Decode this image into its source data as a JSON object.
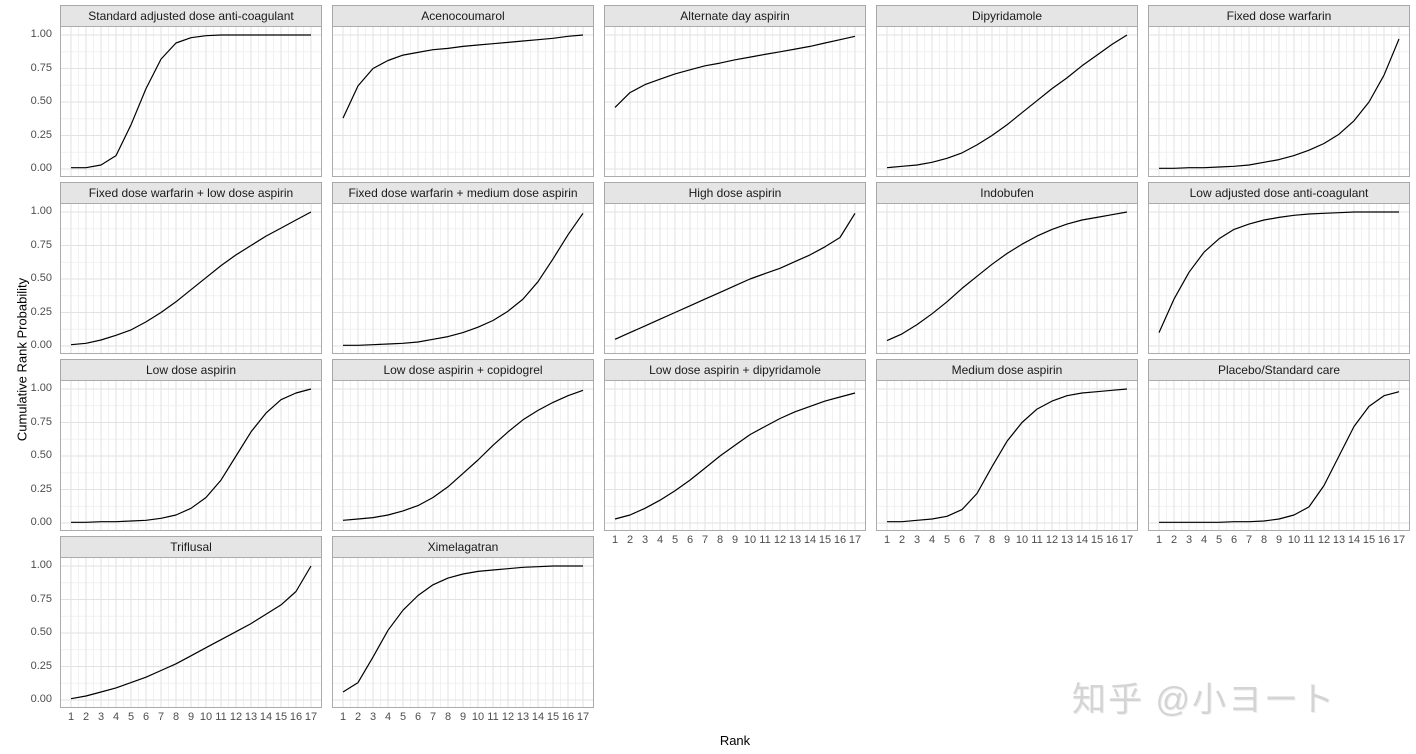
{
  "figure": {
    "ylabel": "Cumulative Rank Probability",
    "xlabel": "Rank",
    "watermark": "知乎 @小ヨート",
    "y_ticks": [
      "1.00",
      "0.75",
      "0.50",
      "0.25",
      "0.00"
    ],
    "x_ticks": [
      "1",
      "2",
      "3",
      "4",
      "5",
      "6",
      "7",
      "8",
      "9",
      "10",
      "11",
      "12",
      "13",
      "14",
      "15",
      "16",
      "17"
    ]
  },
  "chart_data": {
    "type": "line",
    "layout": "facet_wrap, 5 columns, 17 panels",
    "x": [
      1,
      2,
      3,
      4,
      5,
      6,
      7,
      8,
      9,
      10,
      11,
      12,
      13,
      14,
      15,
      16,
      17
    ],
    "xlabel": "Rank",
    "ylabel": "Cumulative Rank Probability",
    "ylim": [
      0,
      1
    ],
    "grid": true,
    "legend": "none",
    "style": {
      "line_color": "#000000",
      "strip_bg": "#e5e5e5",
      "strip_border": "#a8a8a8",
      "panel_border": "#ababab",
      "grid_major": "#e2e2e2",
      "grid_minor": "#f1f1f1"
    },
    "series": [
      {
        "name": "Standard adjusted dose anti-coagulant",
        "values": [
          0.01,
          0.01,
          0.03,
          0.1,
          0.33,
          0.6,
          0.82,
          0.94,
          0.98,
          0.995,
          1.0,
          1.0,
          1.0,
          1.0,
          1.0,
          1.0,
          1.0
        ]
      },
      {
        "name": "Acenocoumarol",
        "values": [
          0.38,
          0.62,
          0.75,
          0.81,
          0.85,
          0.87,
          0.89,
          0.9,
          0.915,
          0.925,
          0.935,
          0.945,
          0.955,
          0.965,
          0.975,
          0.99,
          1.0
        ]
      },
      {
        "name": "Alternate day aspirin",
        "values": [
          0.46,
          0.57,
          0.63,
          0.67,
          0.71,
          0.74,
          0.77,
          0.79,
          0.815,
          0.835,
          0.855,
          0.875,
          0.895,
          0.915,
          0.94,
          0.965,
          0.99
        ]
      },
      {
        "name": "Dipyridamole",
        "values": [
          0.01,
          0.02,
          0.03,
          0.05,
          0.08,
          0.12,
          0.18,
          0.25,
          0.33,
          0.42,
          0.51,
          0.6,
          0.68,
          0.77,
          0.85,
          0.93,
          1.0
        ]
      },
      {
        "name": "Fixed dose warfarin",
        "values": [
          0.005,
          0.005,
          0.01,
          0.01,
          0.015,
          0.02,
          0.03,
          0.05,
          0.07,
          0.1,
          0.14,
          0.19,
          0.26,
          0.36,
          0.5,
          0.7,
          0.97
        ]
      },
      {
        "name": "Fixed dose warfarin + low dose aspirin",
        "values": [
          0.01,
          0.02,
          0.045,
          0.08,
          0.12,
          0.18,
          0.25,
          0.33,
          0.42,
          0.51,
          0.6,
          0.68,
          0.75,
          0.82,
          0.88,
          0.94,
          1.0
        ]
      },
      {
        "name": "Fixed dose warfarin + medium dose aspirin",
        "values": [
          0.005,
          0.005,
          0.01,
          0.015,
          0.02,
          0.03,
          0.05,
          0.07,
          0.1,
          0.14,
          0.19,
          0.26,
          0.35,
          0.48,
          0.65,
          0.83,
          0.99
        ]
      },
      {
        "name": "High dose aspirin",
        "values": [
          0.05,
          0.1,
          0.15,
          0.2,
          0.25,
          0.3,
          0.35,
          0.4,
          0.45,
          0.5,
          0.54,
          0.58,
          0.63,
          0.68,
          0.74,
          0.81,
          0.99
        ]
      },
      {
        "name": "Indobufen",
        "values": [
          0.04,
          0.09,
          0.16,
          0.24,
          0.33,
          0.43,
          0.52,
          0.61,
          0.69,
          0.76,
          0.82,
          0.87,
          0.91,
          0.94,
          0.96,
          0.98,
          1.0
        ]
      },
      {
        "name": "Low adjusted dose anti-coagulant",
        "values": [
          0.1,
          0.35,
          0.55,
          0.7,
          0.8,
          0.87,
          0.91,
          0.94,
          0.96,
          0.975,
          0.985,
          0.99,
          0.995,
          1.0,
          1.0,
          1.0,
          1.0
        ]
      },
      {
        "name": "Low dose aspirin",
        "values": [
          0.005,
          0.005,
          0.01,
          0.01,
          0.015,
          0.02,
          0.035,
          0.06,
          0.11,
          0.19,
          0.32,
          0.5,
          0.68,
          0.82,
          0.92,
          0.97,
          1.0
        ]
      },
      {
        "name": "Low dose aspirin + copidogrel",
        "values": [
          0.02,
          0.03,
          0.04,
          0.06,
          0.09,
          0.13,
          0.19,
          0.27,
          0.37,
          0.47,
          0.58,
          0.68,
          0.77,
          0.84,
          0.9,
          0.95,
          0.99
        ]
      },
      {
        "name": "Low dose aspirin + dipyridamole",
        "values": [
          0.03,
          0.06,
          0.11,
          0.17,
          0.24,
          0.32,
          0.41,
          0.5,
          0.58,
          0.66,
          0.72,
          0.78,
          0.83,
          0.87,
          0.91,
          0.94,
          0.97
        ]
      },
      {
        "name": "Medium dose aspirin",
        "values": [
          0.01,
          0.01,
          0.02,
          0.03,
          0.05,
          0.1,
          0.22,
          0.42,
          0.61,
          0.75,
          0.85,
          0.91,
          0.95,
          0.97,
          0.98,
          0.99,
          1.0
        ]
      },
      {
        "name": "Placebo/Standard care",
        "values": [
          0.005,
          0.005,
          0.005,
          0.005,
          0.005,
          0.01,
          0.01,
          0.015,
          0.03,
          0.06,
          0.12,
          0.28,
          0.5,
          0.72,
          0.87,
          0.95,
          0.98
        ]
      },
      {
        "name": "Triflusal",
        "values": [
          0.01,
          0.03,
          0.06,
          0.09,
          0.13,
          0.17,
          0.22,
          0.27,
          0.33,
          0.39,
          0.45,
          0.51,
          0.57,
          0.64,
          0.71,
          0.81,
          1.0
        ]
      },
      {
        "name": "Ximelagatran",
        "values": [
          0.06,
          0.13,
          0.32,
          0.52,
          0.67,
          0.78,
          0.86,
          0.91,
          0.94,
          0.96,
          0.97,
          0.98,
          0.99,
          0.995,
          1.0,
          1.0,
          1.0
        ]
      }
    ],
    "facet_rows": [
      [
        0,
        1,
        2,
        3,
        4
      ],
      [
        5,
        6,
        7,
        8,
        9
      ],
      [
        10,
        11,
        12,
        13,
        14
      ],
      [
        15,
        16
      ]
    ],
    "facets_with_x_axis": [
      12,
      13,
      14,
      15,
      16
    ],
    "facets_with_y_axis": [
      0,
      5,
      10,
      15
    ]
  }
}
